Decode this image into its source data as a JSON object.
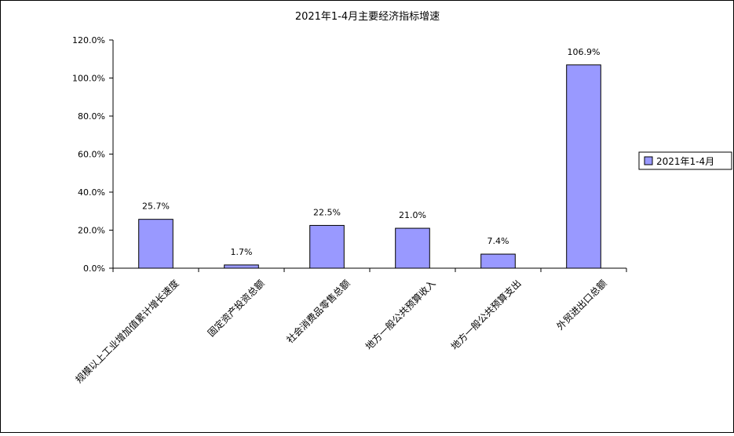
{
  "chart_data": {
    "type": "bar",
    "title": "2021年1-4月主要经济指标增速",
    "categories": [
      "规模以上工业增加值累计增长速度",
      "固定资产投资总额",
      "社会消费品零售总额",
      "地方一般公共预算收入",
      "地方一般公共预算支出",
      "外贸进出口总额"
    ],
    "series": [
      {
        "name": "2021年1-4月",
        "values": [
          25.7,
          1.7,
          22.5,
          21.0,
          7.4,
          106.9
        ],
        "labels": [
          "25.7%",
          "1.7%",
          "22.5%",
          "21.0%",
          "7.4%",
          "106.9%"
        ],
        "color": "#9999ff"
      }
    ],
    "yticks": [
      "0.0%",
      "20.0%",
      "40.0%",
      "60.0%",
      "80.0%",
      "100.0%",
      "120.0%"
    ],
    "ylim": [
      0,
      120
    ],
    "xlabel": "",
    "ylabel": "",
    "grid": false,
    "legend": "right"
  }
}
